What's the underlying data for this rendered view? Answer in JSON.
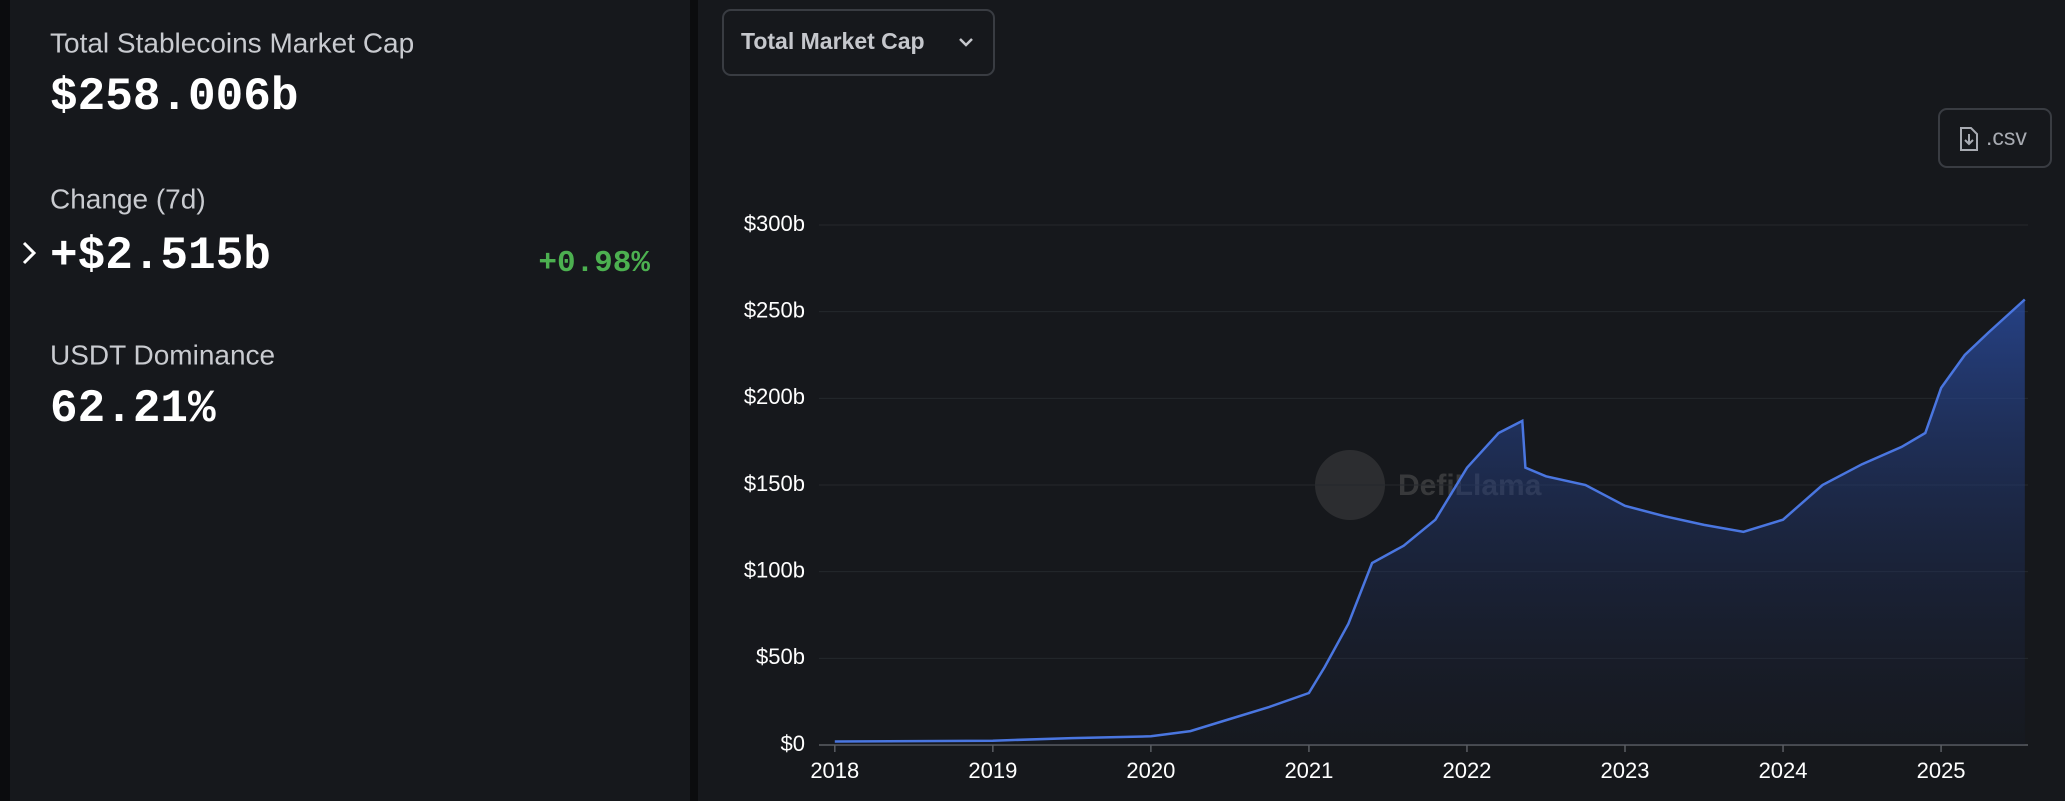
{
  "stats": [
    {
      "label": "Total Stablecoins Market Cap",
      "value": "$258.006b"
    },
    {
      "label": "Change (7d)",
      "value": "+$2.515b",
      "change": "+0.98%"
    },
    {
      "label": "USDT Dominance",
      "value": "62.21%"
    }
  ],
  "dropdown": "Total Market Cap",
  "csv_button": ".csv",
  "watermark": "DefiLlama",
  "chart_data": {
    "type": "area",
    "x": [
      2018.0,
      2019.0,
      2019.5,
      2020.0,
      2020.25,
      2020.5,
      2020.75,
      2021.0,
      2021.1,
      2021.25,
      2021.4,
      2021.6,
      2021.8,
      2022.0,
      2022.2,
      2022.35,
      2022.37,
      2022.5,
      2022.75,
      2023.0,
      2023.25,
      2023.5,
      2023.75,
      2024.0,
      2024.25,
      2024.5,
      2024.75,
      2024.9,
      2025.0,
      2025.15,
      2025.3,
      2025.53
    ],
    "values": [
      2,
      2.5,
      4,
      5,
      8,
      15,
      22,
      30,
      45,
      70,
      105,
      115,
      130,
      160,
      180,
      187,
      160,
      155,
      150,
      138,
      132,
      127,
      123,
      130,
      150,
      162,
      172,
      180,
      206,
      225,
      238,
      257
    ],
    "color": "#4a76e0",
    "xlim": [
      2017.9,
      2025.55
    ],
    "xticks": [
      2018,
      2019,
      2020,
      2021,
      2022,
      2023,
      2024,
      2025
    ],
    "ylim": [
      0,
      300
    ],
    "yticks": [
      {
        "value": 0,
        "label": "$0"
      },
      {
        "value": 50,
        "label": "$50b"
      },
      {
        "value": 100,
        "label": "$100b"
      },
      {
        "value": 150,
        "label": "$150b"
      },
      {
        "value": 200,
        "label": "$200b"
      },
      {
        "value": 250,
        "label": "$250b"
      },
      {
        "value": 300,
        "label": "$300b"
      }
    ],
    "grid": true
  }
}
